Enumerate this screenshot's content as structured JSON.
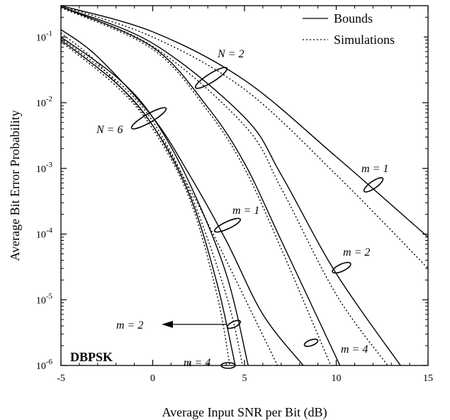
{
  "chart_data": {
    "type": "line",
    "xlabel": "Average Input SNR per Bit (dB)",
    "ylabel": "Average Bit Error Probability",
    "xlim": [
      -5,
      15
    ],
    "ylim": [
      1e-06,
      0.3
    ],
    "yscale": "log",
    "x_ticks": [
      "-5",
      "0",
      "5",
      "10",
      "15"
    ],
    "y_ticks": [
      {
        "base": "10",
        "exp": "-1",
        "value": 0.1
      },
      {
        "base": "10",
        "exp": "-2",
        "value": 0.01
      },
      {
        "base": "10",
        "exp": "-3",
        "value": 0.001
      },
      {
        "base": "10",
        "exp": "-4",
        "value": 0.0001
      },
      {
        "base": "10",
        "exp": "-5",
        "value": 1e-05
      },
      {
        "base": "10",
        "exp": "-6",
        "value": 1e-06
      }
    ],
    "grid": false,
    "legend": {
      "placement": "top-right",
      "entries": [
        {
          "label": "Bounds",
          "style": "solid"
        },
        {
          "label": "Simulations",
          "style": "dotted"
        }
      ]
    },
    "series": [
      {
        "style": "solid",
        "points": [
          [
            -5,
            0.3
          ],
          [
            0,
            0.12
          ],
          [
            5,
            0.022
          ],
          [
            10,
            0.0015
          ],
          [
            15,
            9e-05
          ]
        ]
      },
      {
        "style": "dotted",
        "points": [
          [
            -5,
            0.3
          ],
          [
            0,
            0.1
          ],
          [
            5,
            0.016
          ],
          [
            10,
            0.0008
          ],
          [
            15,
            3e-05
          ]
        ]
      },
      {
        "style": "solid",
        "points": [
          [
            -5,
            0.29
          ],
          [
            0,
            0.08
          ],
          [
            5,
            0.006
          ],
          [
            7,
            0.0008
          ],
          [
            10,
            2.5e-05
          ],
          [
            13.5,
            1e-06
          ]
        ]
      },
      {
        "style": "dotted",
        "points": [
          [
            -5,
            0.28
          ],
          [
            0,
            0.072
          ],
          [
            5,
            0.0045
          ],
          [
            7,
            0.0005
          ],
          [
            10,
            1.2e-05
          ],
          [
            12.8,
            1e-06
          ]
        ]
      },
      {
        "style": "solid",
        "points": [
          [
            -5,
            0.29
          ],
          [
            0,
            0.07
          ],
          [
            3,
            0.0085
          ],
          [
            5,
            0.0012
          ],
          [
            7,
            8e-05
          ],
          [
            10.2,
            1e-06
          ]
        ]
      },
      {
        "style": "dotted",
        "points": [
          [
            -5,
            0.28
          ],
          [
            0,
            0.065
          ],
          [
            3,
            0.0075
          ],
          [
            5,
            0.001
          ],
          [
            7,
            6e-05
          ],
          [
            9.7,
            1e-06
          ]
        ]
      },
      {
        "style": "solid",
        "points": [
          [
            -5,
            0.13
          ],
          [
            -3,
            0.05
          ],
          [
            0,
            0.006
          ],
          [
            2,
            0.0008
          ],
          [
            4,
            8e-05
          ],
          [
            6,
            6e-06
          ],
          [
            8.2,
            1e-06
          ]
        ]
      },
      {
        "style": "dotted",
        "points": [
          [
            -5,
            0.115
          ],
          [
            -3,
            0.04
          ],
          [
            0,
            0.0045
          ],
          [
            2,
            0.0005
          ],
          [
            4,
            4e-05
          ],
          [
            6.8,
            1e-06
          ]
        ]
      },
      {
        "style": "solid",
        "points": [
          [
            -5,
            0.1
          ],
          [
            -2,
            0.025
          ],
          [
            0,
            0.006
          ],
          [
            2,
            0.0006
          ],
          [
            4,
            2.5e-05
          ],
          [
            5.2,
            1e-06
          ]
        ]
      },
      {
        "style": "dotted",
        "points": [
          [
            -5,
            0.095
          ],
          [
            -2,
            0.022
          ],
          [
            0,
            0.0052
          ],
          [
            2,
            0.00045
          ],
          [
            4,
            1.2e-05
          ],
          [
            4.9,
            1e-06
          ]
        ]
      },
      {
        "style": "solid",
        "points": [
          [
            -5,
            0.09
          ],
          [
            -2,
            0.02
          ],
          [
            0,
            0.0045
          ],
          [
            2,
            0.0004
          ],
          [
            3.5,
            1.8e-05
          ],
          [
            4.5,
            1e-06
          ]
        ]
      },
      {
        "style": "dotted",
        "points": [
          [
            -5,
            0.085
          ],
          [
            -2,
            0.018
          ],
          [
            0,
            0.004
          ],
          [
            2,
            0.00035
          ],
          [
            3.5,
            1.2e-05
          ],
          [
            4.2,
            1e-06
          ]
        ]
      }
    ],
    "annotations": [
      {
        "label": "N = 2"
      },
      {
        "label": "N = 6"
      },
      {
        "label": "m = 1"
      },
      {
        "label": "m = 1"
      },
      {
        "label": "m = 2"
      },
      {
        "label": "m = 2"
      },
      {
        "label": "m = 4"
      },
      {
        "label": "m = 4"
      },
      {
        "label": "DBPSK"
      }
    ]
  }
}
